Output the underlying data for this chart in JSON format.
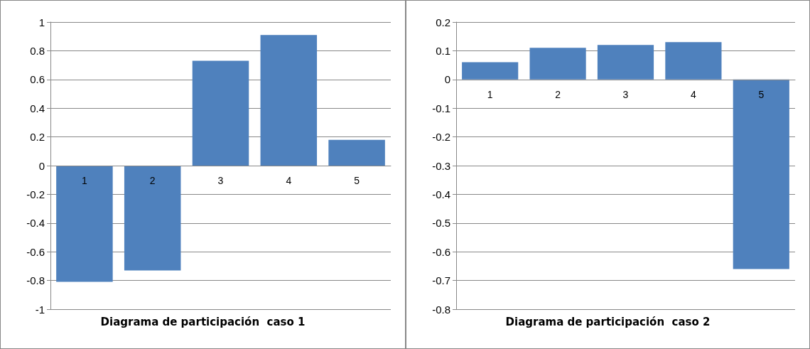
{
  "chart_data": [
    {
      "type": "bar",
      "xlabel": "Diagrama de participación  caso 1",
      "categories": [
        "1",
        "2",
        "3",
        "4",
        "5"
      ],
      "series": [
        {
          "color": "#4f81bd",
          "values": [
            -0.81,
            -0.73,
            0.73,
            0.91,
            0.18
          ]
        }
      ],
      "ylim": [
        -1,
        1
      ],
      "yticks": [
        -1,
        -0.8,
        -0.6,
        -0.4,
        -0.2,
        0,
        0.2,
        0.4,
        0.6,
        0.8,
        1
      ],
      "grid": "y"
    },
    {
      "type": "bar",
      "xlabel": "Diagrama de participación  caso 2",
      "categories": [
        "1",
        "2",
        "3",
        "4",
        "5"
      ],
      "series": [
        {
          "color": "#4f81bd",
          "values": [
            0.06,
            0.11,
            0.12,
            0.13,
            -0.66
          ]
        }
      ],
      "ylim": [
        -0.8,
        0.2
      ],
      "yticks": [
        -0.8,
        -0.7,
        -0.6,
        -0.5,
        -0.4,
        -0.3,
        -0.2,
        -0.1,
        0,
        0.1,
        0.2
      ],
      "grid": "y"
    }
  ]
}
